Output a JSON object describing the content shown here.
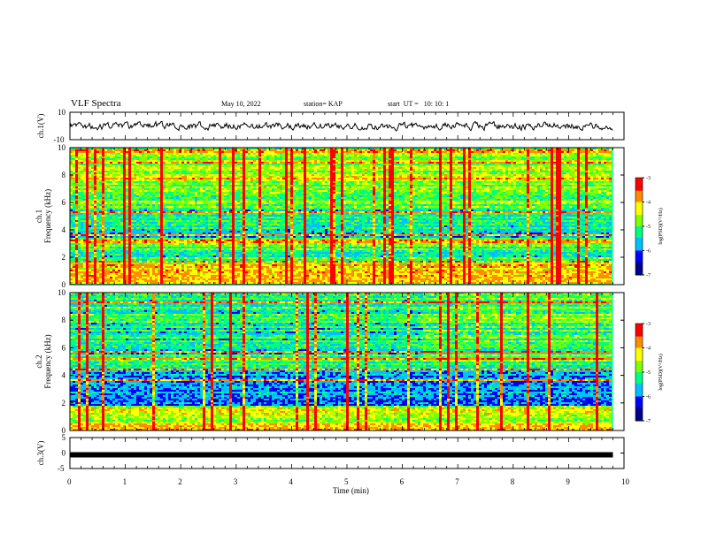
{
  "header": {
    "title": "VLF Spectra",
    "date": "May 10, 2022",
    "station": "station= KAP",
    "start": "start  UT =   10: 10: 1"
  },
  "colorbar": {
    "label": "log(PSD)(V²/Hz)",
    "ticks": [
      "-3",
      "-4",
      "-5",
      "-6",
      "-7"
    ],
    "colors": [
      "#00008b",
      "#0000ff",
      "#00bfff",
      "#00ff7f",
      "#7fff00",
      "#ffff00",
      "#ff8c00",
      "#ff0000",
      "#ffffff"
    ]
  },
  "chart_data": [
    {
      "type": "line",
      "panel": "ch1-waveform",
      "ylabel": "ch.1(V)",
      "ylim": [
        -10,
        10
      ],
      "yticks": [
        "10",
        "-10"
      ],
      "xlim": [
        0,
        10
      ],
      "series": [
        {
          "description_values": "noisy waveform fluctuating roughly between -7 and 7 V"
        }
      ]
    },
    {
      "type": "heatmap",
      "panel": "ch1-spectrogram",
      "ylabel": "ch.1\nFrequency (kHz)",
      "ylim": [
        0,
        10
      ],
      "yticks": [
        "0",
        "2",
        "4",
        "6",
        "8",
        "10"
      ],
      "xlim": [
        0,
        10
      ],
      "data_end_min": 9.8,
      "colorscale": "log(PSD)(V²/Hz)",
      "zlim": [
        -7,
        -3
      ]
    },
    {
      "type": "heatmap",
      "panel": "ch2-spectrogram",
      "ylabel": "ch.2\nFrequency (kHz)",
      "ylim": [
        0,
        10
      ],
      "yticks": [
        "0",
        "2",
        "4",
        "6",
        "8",
        "10"
      ],
      "xlim": [
        0,
        10
      ],
      "data_end_min": 9.8,
      "colorscale": "log(PSD)(V²/Hz)",
      "zlim": [
        -7,
        -3
      ]
    },
    {
      "type": "line",
      "panel": "ch3-waveform",
      "ylabel": "ch.3(V)",
      "ylim": [
        -5,
        5
      ],
      "yticks": [
        "5",
        "0",
        "-5"
      ],
      "xlim": [
        0,
        10
      ],
      "series": [
        {
          "values_approx": "constant near 0 V (thick band)"
        }
      ]
    }
  ],
  "xaxis": {
    "label": "Time (min)",
    "ticks": [
      "0",
      "1",
      "2",
      "3",
      "4",
      "5",
      "6",
      "7",
      "8",
      "9",
      "10"
    ]
  }
}
